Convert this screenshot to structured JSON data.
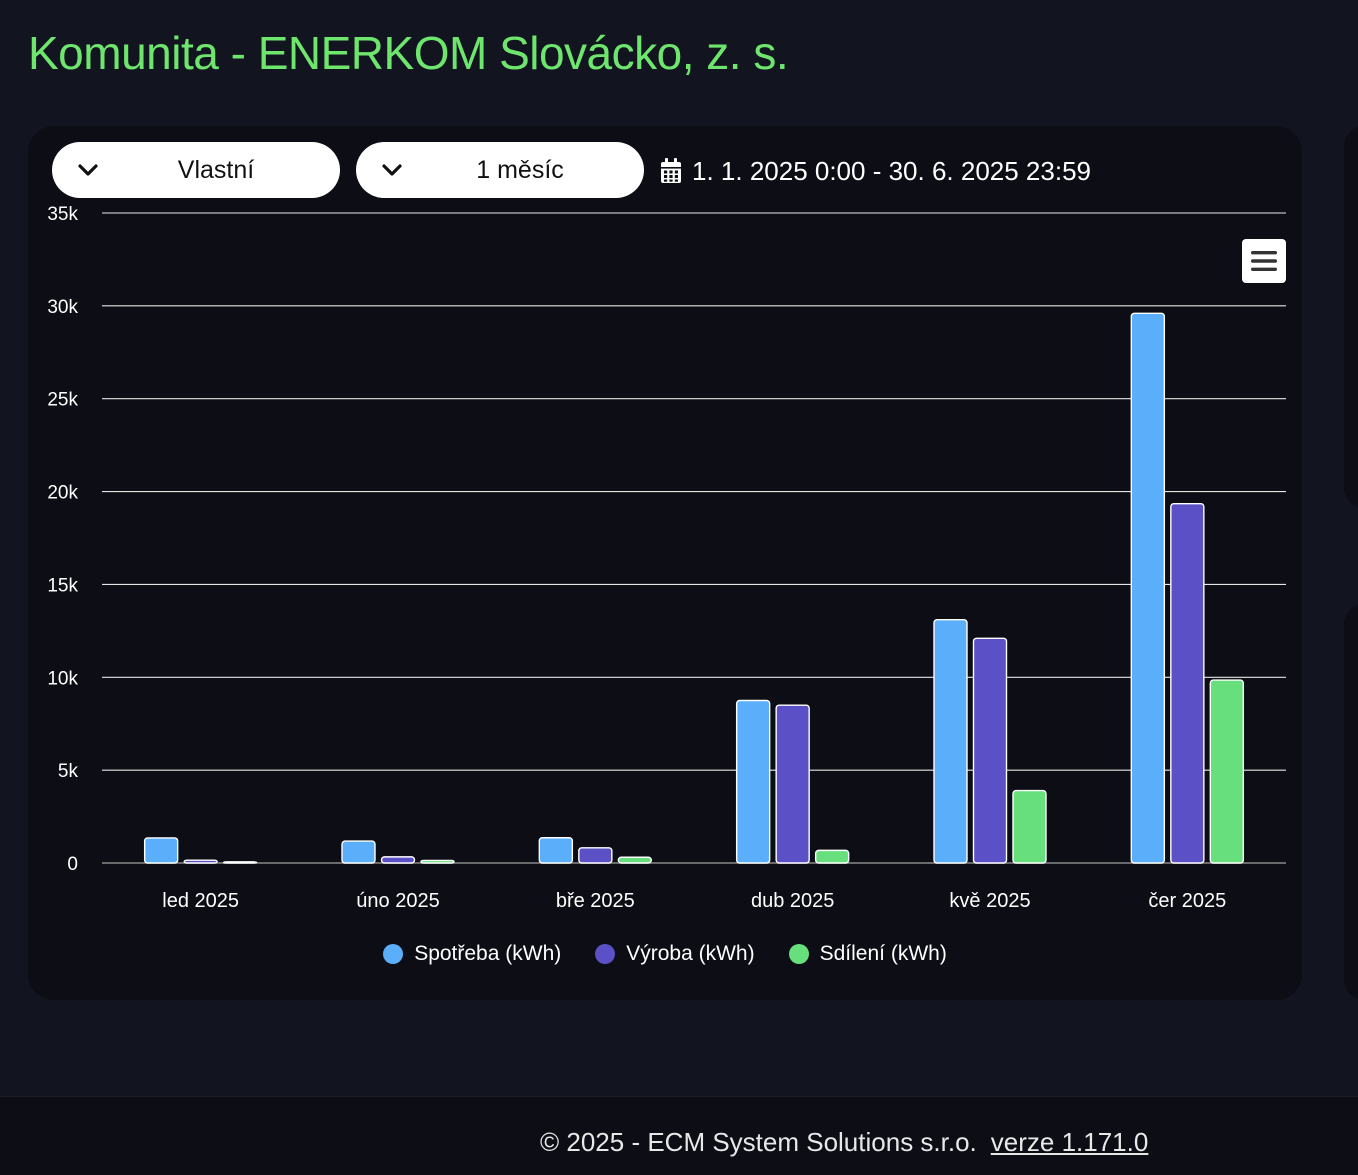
{
  "page": {
    "title": "Komunita - ENERKOM Slovácko, z. s."
  },
  "controls": {
    "range_type": "Vlastní",
    "granularity": "1 měsíc",
    "date_range": "1. 1. 2025 0:00 - 30. 6. 2025 23:59"
  },
  "icons": {
    "dropdown": "chevron-down-icon",
    "calendar": "calendar-icon",
    "menu": "hamburger-menu-icon"
  },
  "chart_data": {
    "type": "bar",
    "title": "",
    "xlabel": "",
    "ylabel": "",
    "categories": [
      "led 2025",
      "úno 2025",
      "bře 2025",
      "dub 2025",
      "kvě 2025",
      "čer 2025"
    ],
    "series": [
      {
        "name": "Spotřeba (kWh)",
        "color": "#5aaefa",
        "values": [
          1350,
          1180,
          1360,
          8750,
          13100,
          29600
        ]
      },
      {
        "name": "Výroba (kWh)",
        "color": "#5b50c6",
        "values": [
          150,
          330,
          820,
          8500,
          12100,
          19350
        ]
      },
      {
        "name": "Sdílení (kWh)",
        "color": "#66df7c",
        "values": [
          60,
          140,
          310,
          680,
          3900,
          9850
        ]
      }
    ],
    "ylim": [
      0,
      35000
    ],
    "yticks": [
      0,
      5000,
      10000,
      15000,
      20000,
      25000,
      30000,
      35000
    ],
    "ytick_labels": [
      "0",
      "5k",
      "10k",
      "15k",
      "20k",
      "25k",
      "30k",
      "35k"
    ],
    "grid": true,
    "legend_position": "bottom"
  },
  "footer": {
    "copyright": "© 2025 - ECM System Solutions s.r.o.",
    "version_link": "verze 1.171.0"
  }
}
